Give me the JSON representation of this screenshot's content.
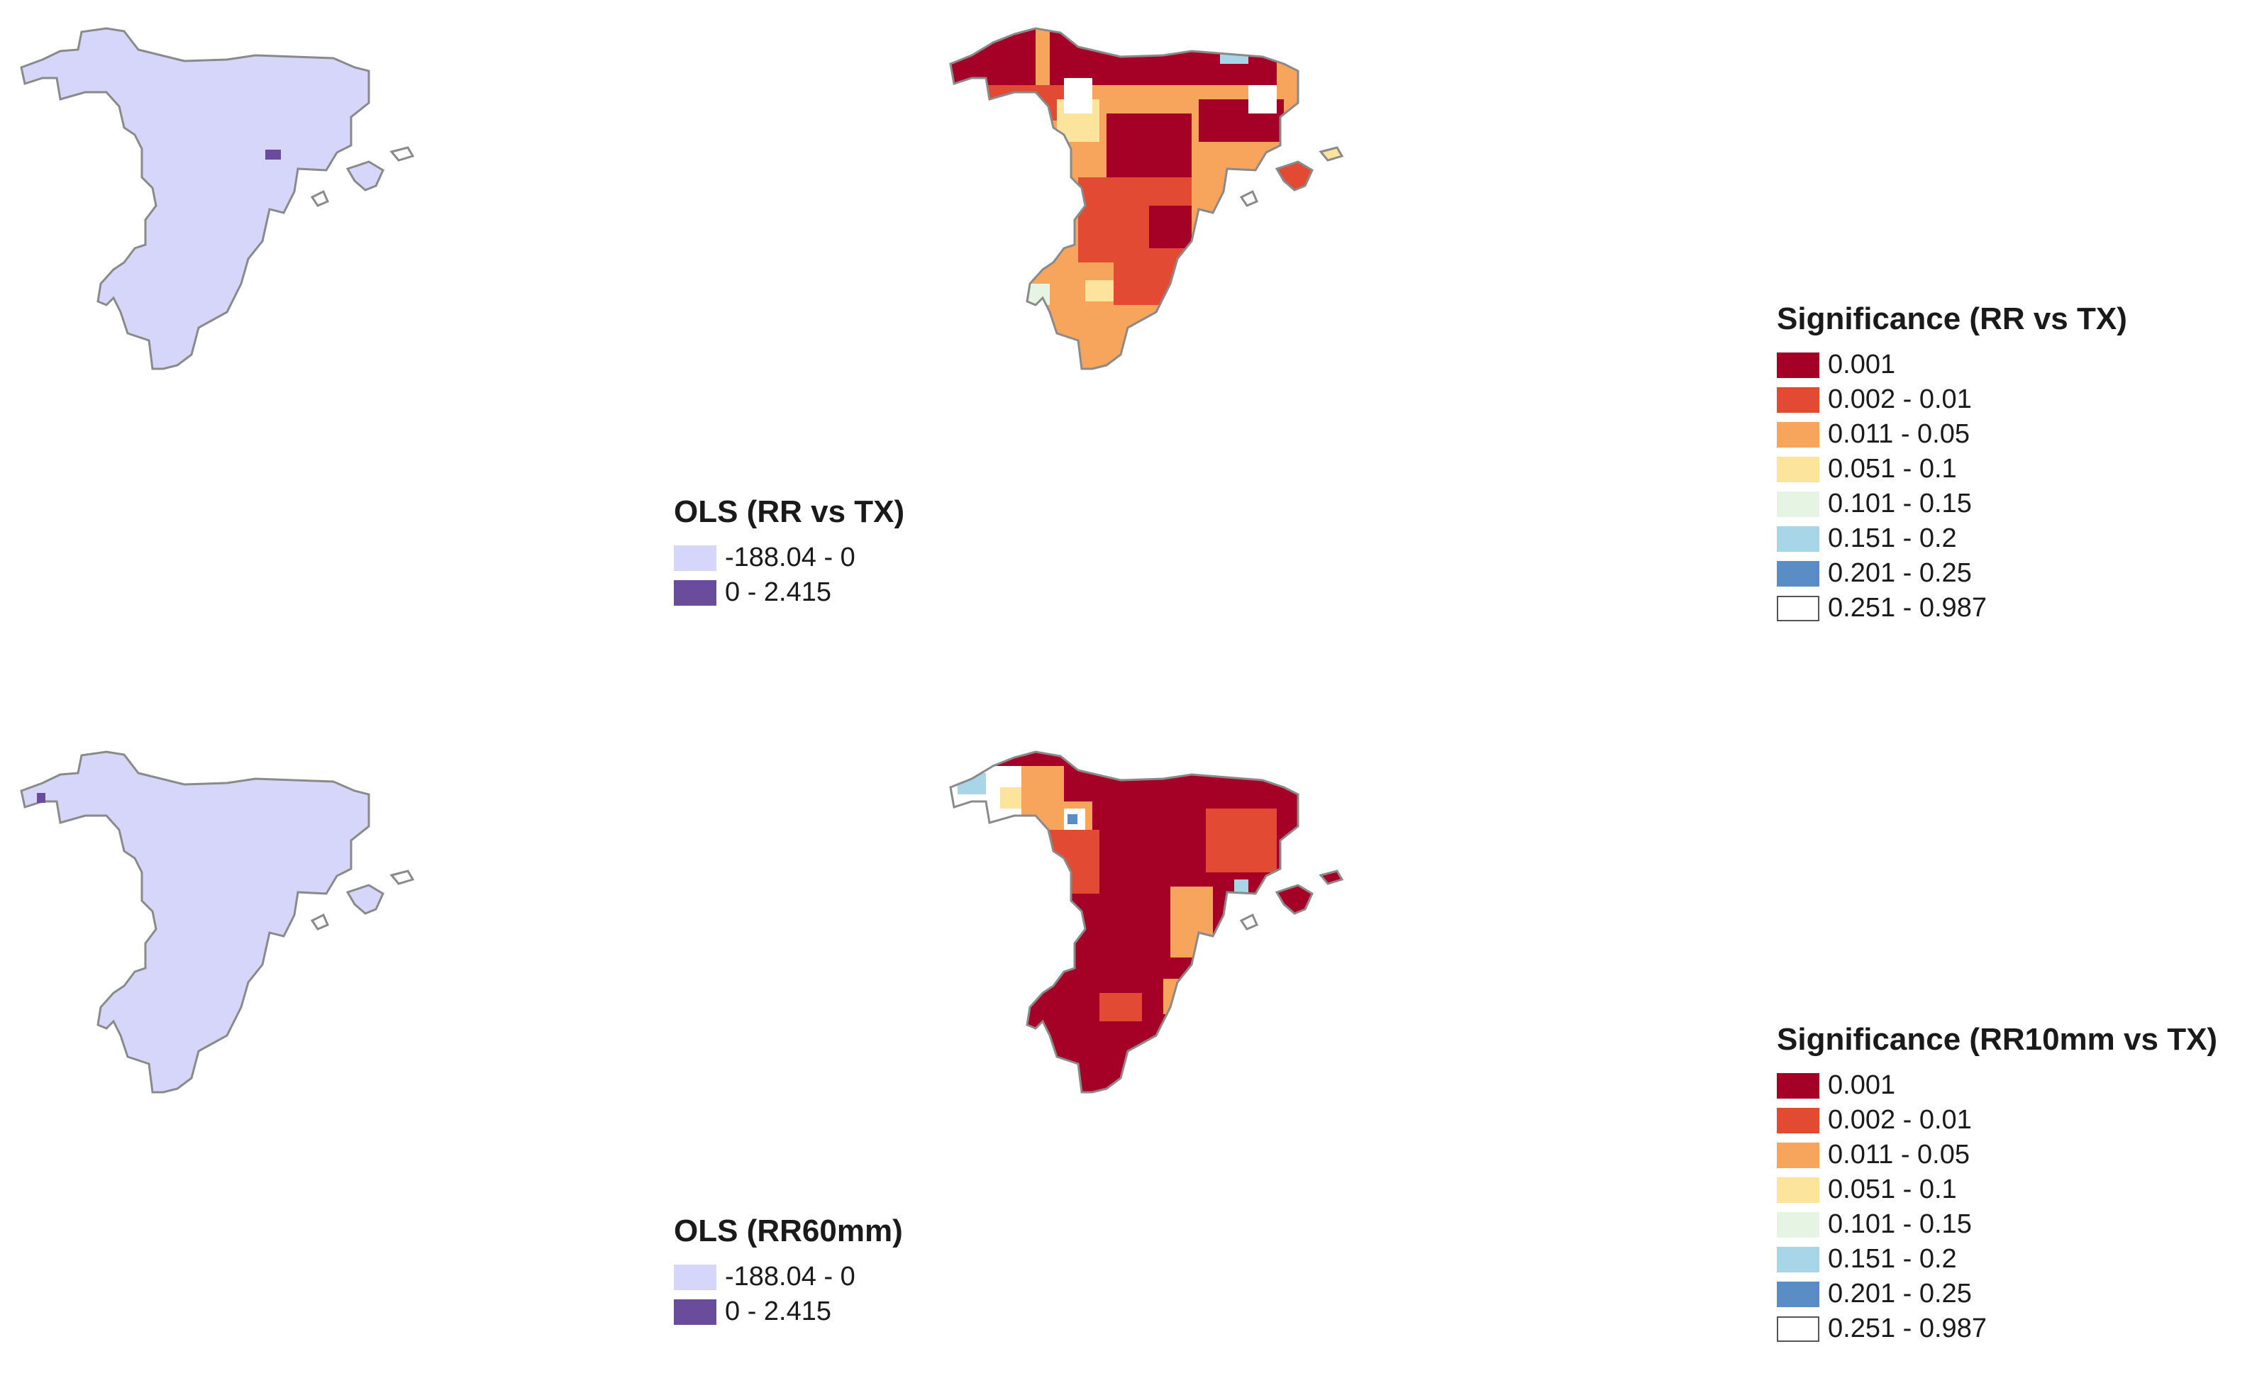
{
  "colors": {
    "outline": "#8a8a8a",
    "ols_fill": "#d6d6fa"
  },
  "maps": [
    {
      "kind": "ols",
      "legend": {
        "title": "OLS (RR vs TX)",
        "items": [
          {
            "label": "-188.04 - 0",
            "color": "#d6d6fa"
          },
          {
            "label": "0 - 2.415",
            "color": "#6a4c9c"
          }
        ]
      },
      "highlight_cells": [
        "east-coast-cell"
      ]
    },
    {
      "kind": "significance",
      "legend": {
        "title": "Significance (RR vs TX)",
        "items": [
          {
            "label": "0.001",
            "color": "#a50026"
          },
          {
            "label": "0.002 - 0.01",
            "color": "#e34a33"
          },
          {
            "label": "0.011 - 0.05",
            "color": "#f7a55c"
          },
          {
            "label": "0.051 - 0.1",
            "color": "#fde49c"
          },
          {
            "label": "0.101 - 0.15",
            "color": "#e6f4e3"
          },
          {
            "label": "0.151 - 0.2",
            "color": "#a8d5e8"
          },
          {
            "label": "0.201 - 0.25",
            "color": "#5a8dc6"
          },
          {
            "label": "0.251 - 0.987",
            "color": "#ffffff"
          }
        ]
      }
    },
    {
      "kind": "ols",
      "legend": {
        "title": "OLS (RR60mm)",
        "items": [
          {
            "label": "-188.04 - 0",
            "color": "#d6d6fa"
          },
          {
            "label": "0 - 2.415",
            "color": "#6a4c9c"
          }
        ]
      },
      "highlight_cells": [
        "northwest-coast-cell"
      ]
    },
    {
      "kind": "significance",
      "legend": {
        "title": "Significance (RR10mm vs TX)",
        "items": [
          {
            "label": "0.001",
            "color": "#a50026"
          },
          {
            "label": "0.002 - 0.01",
            "color": "#e34a33"
          },
          {
            "label": "0.011 - 0.05",
            "color": "#f7a55c"
          },
          {
            "label": "0.051 - 0.1",
            "color": "#fde49c"
          },
          {
            "label": "0.101 - 0.15",
            "color": "#e6f4e3"
          },
          {
            "label": "0.151 - 0.2",
            "color": "#a8d5e8"
          },
          {
            "label": "0.201 - 0.25",
            "color": "#5a8dc6"
          },
          {
            "label": "0.251 - 0.987",
            "color": "#ffffff"
          }
        ]
      }
    }
  ]
}
